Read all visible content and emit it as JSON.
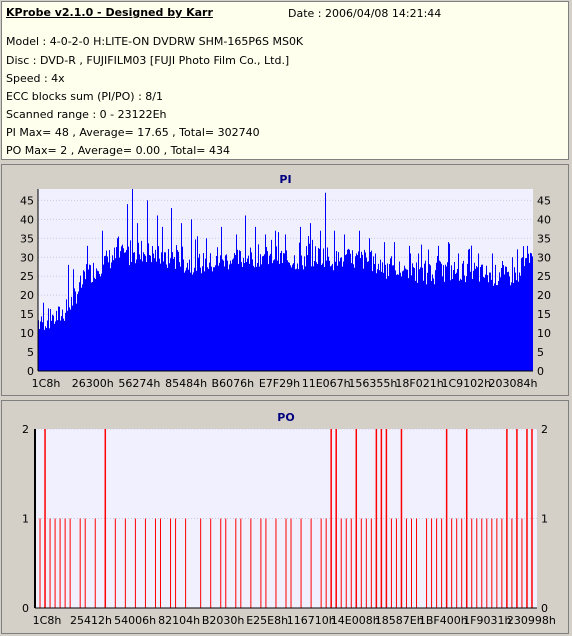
{
  "info": {
    "title": "KProbe v2.1.0 - Designed by Karr",
    "date": "Date : 2006/04/08 14:21:44",
    "model": "Model : 4-0-2-0 H:LITE-ON DVDRW SHM-165P6S MS0K",
    "disc": "Disc : DVD-R , FUJIFILM03 [FUJI Photo Film Co., Ltd.]",
    "speed": "Speed : 4x",
    "ecc": "ECC blocks sum (PI/PO) : 8/1",
    "range": "Scanned range : 0 - 23122Eh",
    "pi_stats": "PI Max= 48 , Average= 17.65 , Total= 302740",
    "po_stats": "PO Max= 2 , Average= 0.00 , Total= 434"
  },
  "chart_data": [
    {
      "type": "area",
      "title": "PI",
      "ylim": [
        0,
        48
      ],
      "yticks": [
        "0",
        "5",
        "10",
        "15",
        "20",
        "25",
        "30",
        "35",
        "40",
        "45"
      ],
      "xticks": [
        "1C8h",
        "26300h",
        "56274h",
        "85484h",
        "B6076h",
        "E7F29h",
        "11E067h",
        "156355h",
        "18F021h",
        "1C9102h",
        "203084h"
      ],
      "color": "#0000ff",
      "profile": [
        [
          0,
          14
        ],
        [
          2,
          14
        ],
        [
          4,
          15
        ],
        [
          6,
          17
        ],
        [
          8,
          22
        ],
        [
          10,
          26
        ],
        [
          12,
          28
        ],
        [
          14,
          30
        ],
        [
          16,
          31
        ],
        [
          18,
          31
        ],
        [
          20,
          32
        ],
        [
          22,
          32
        ],
        [
          24,
          31
        ],
        [
          26,
          30
        ],
        [
          28,
          30
        ],
        [
          30,
          29
        ],
        [
          32,
          29
        ],
        [
          34,
          29
        ],
        [
          36,
          29
        ],
        [
          38,
          30
        ],
        [
          40,
          30
        ],
        [
          42,
          30
        ],
        [
          44,
          31
        ],
        [
          46,
          31
        ],
        [
          48,
          31
        ],
        [
          50,
          30
        ],
        [
          52,
          30
        ],
        [
          54,
          30
        ],
        [
          56,
          31
        ],
        [
          58,
          31
        ],
        [
          60,
          30
        ],
        [
          62,
          30
        ],
        [
          64,
          30
        ],
        [
          66,
          30
        ],
        [
          68,
          29
        ],
        [
          70,
          28
        ],
        [
          72,
          27
        ],
        [
          74,
          27
        ],
        [
          76,
          26
        ],
        [
          78,
          26
        ],
        [
          80,
          26
        ],
        [
          82,
          27
        ],
        [
          84,
          27
        ],
        [
          86,
          27
        ],
        [
          88,
          27
        ],
        [
          90,
          26
        ],
        [
          92,
          26
        ],
        [
          94,
          25
        ],
        [
          96,
          26
        ],
        [
          98,
          28
        ],
        [
          100,
          30
        ]
      ],
      "peaks": [
        [
          1,
          18
        ],
        [
          6,
          28
        ],
        [
          10,
          33
        ],
        [
          13,
          37
        ],
        [
          16,
          35
        ],
        [
          18,
          44
        ],
        [
          19,
          48
        ],
        [
          20,
          39
        ],
        [
          22,
          45
        ],
        [
          24,
          41
        ],
        [
          25,
          38
        ],
        [
          27,
          43
        ],
        [
          29,
          39
        ],
        [
          31,
          40
        ],
        [
          34,
          35
        ],
        [
          37,
          38
        ],
        [
          40,
          36
        ],
        [
          42,
          41
        ],
        [
          44,
          38
        ],
        [
          46,
          36
        ],
        [
          48,
          37
        ],
        [
          50,
          36
        ],
        [
          53,
          38
        ],
        [
          55,
          39
        ],
        [
          57,
          37
        ],
        [
          58,
          47
        ],
        [
          60,
          37
        ],
        [
          62,
          36
        ],
        [
          65,
          37
        ],
        [
          67,
          35
        ],
        [
          70,
          34
        ],
        [
          72,
          34
        ],
        [
          75,
          33
        ],
        [
          77,
          31
        ],
        [
          79,
          32
        ],
        [
          81,
          33
        ],
        [
          83,
          34
        ],
        [
          85,
          31
        ],
        [
          87,
          32
        ],
        [
          89,
          31
        ],
        [
          92,
          31
        ],
        [
          94,
          29
        ],
        [
          96,
          30
        ],
        [
          98,
          30
        ],
        [
          99,
          33
        ]
      ]
    },
    {
      "type": "bar",
      "title": "PO",
      "ylim": [
        0,
        2
      ],
      "yticks": [
        "0",
        "1",
        "2"
      ],
      "xticks": [
        "1C8h",
        "25412h",
        "54006h",
        "82104h",
        "B2030h",
        "E25E8h",
        "116710h",
        "14E008h",
        "18587Eh",
        "1BF400h",
        "1F9031h",
        "230998h"
      ],
      "color": "#ff0000",
      "values_of_2": [
        2,
        14,
        59,
        60,
        64,
        68,
        69,
        70,
        73,
        82,
        86,
        94,
        96,
        98,
        99
      ],
      "values_of_1": [
        1,
        3,
        4,
        5,
        6,
        7,
        9,
        10,
        12,
        16,
        18,
        20,
        22,
        24,
        25,
        27,
        28,
        30,
        33,
        35,
        37,
        38,
        40,
        41,
        43,
        45,
        46,
        48,
        50,
        51,
        53,
        55,
        57,
        58,
        61,
        62,
        63,
        65,
        66,
        67,
        71,
        72,
        74,
        75,
        76,
        78,
        79,
        80,
        81,
        83,
        84,
        85,
        87,
        88,
        89,
        90,
        91,
        92,
        93,
        95,
        97
      ]
    }
  ]
}
